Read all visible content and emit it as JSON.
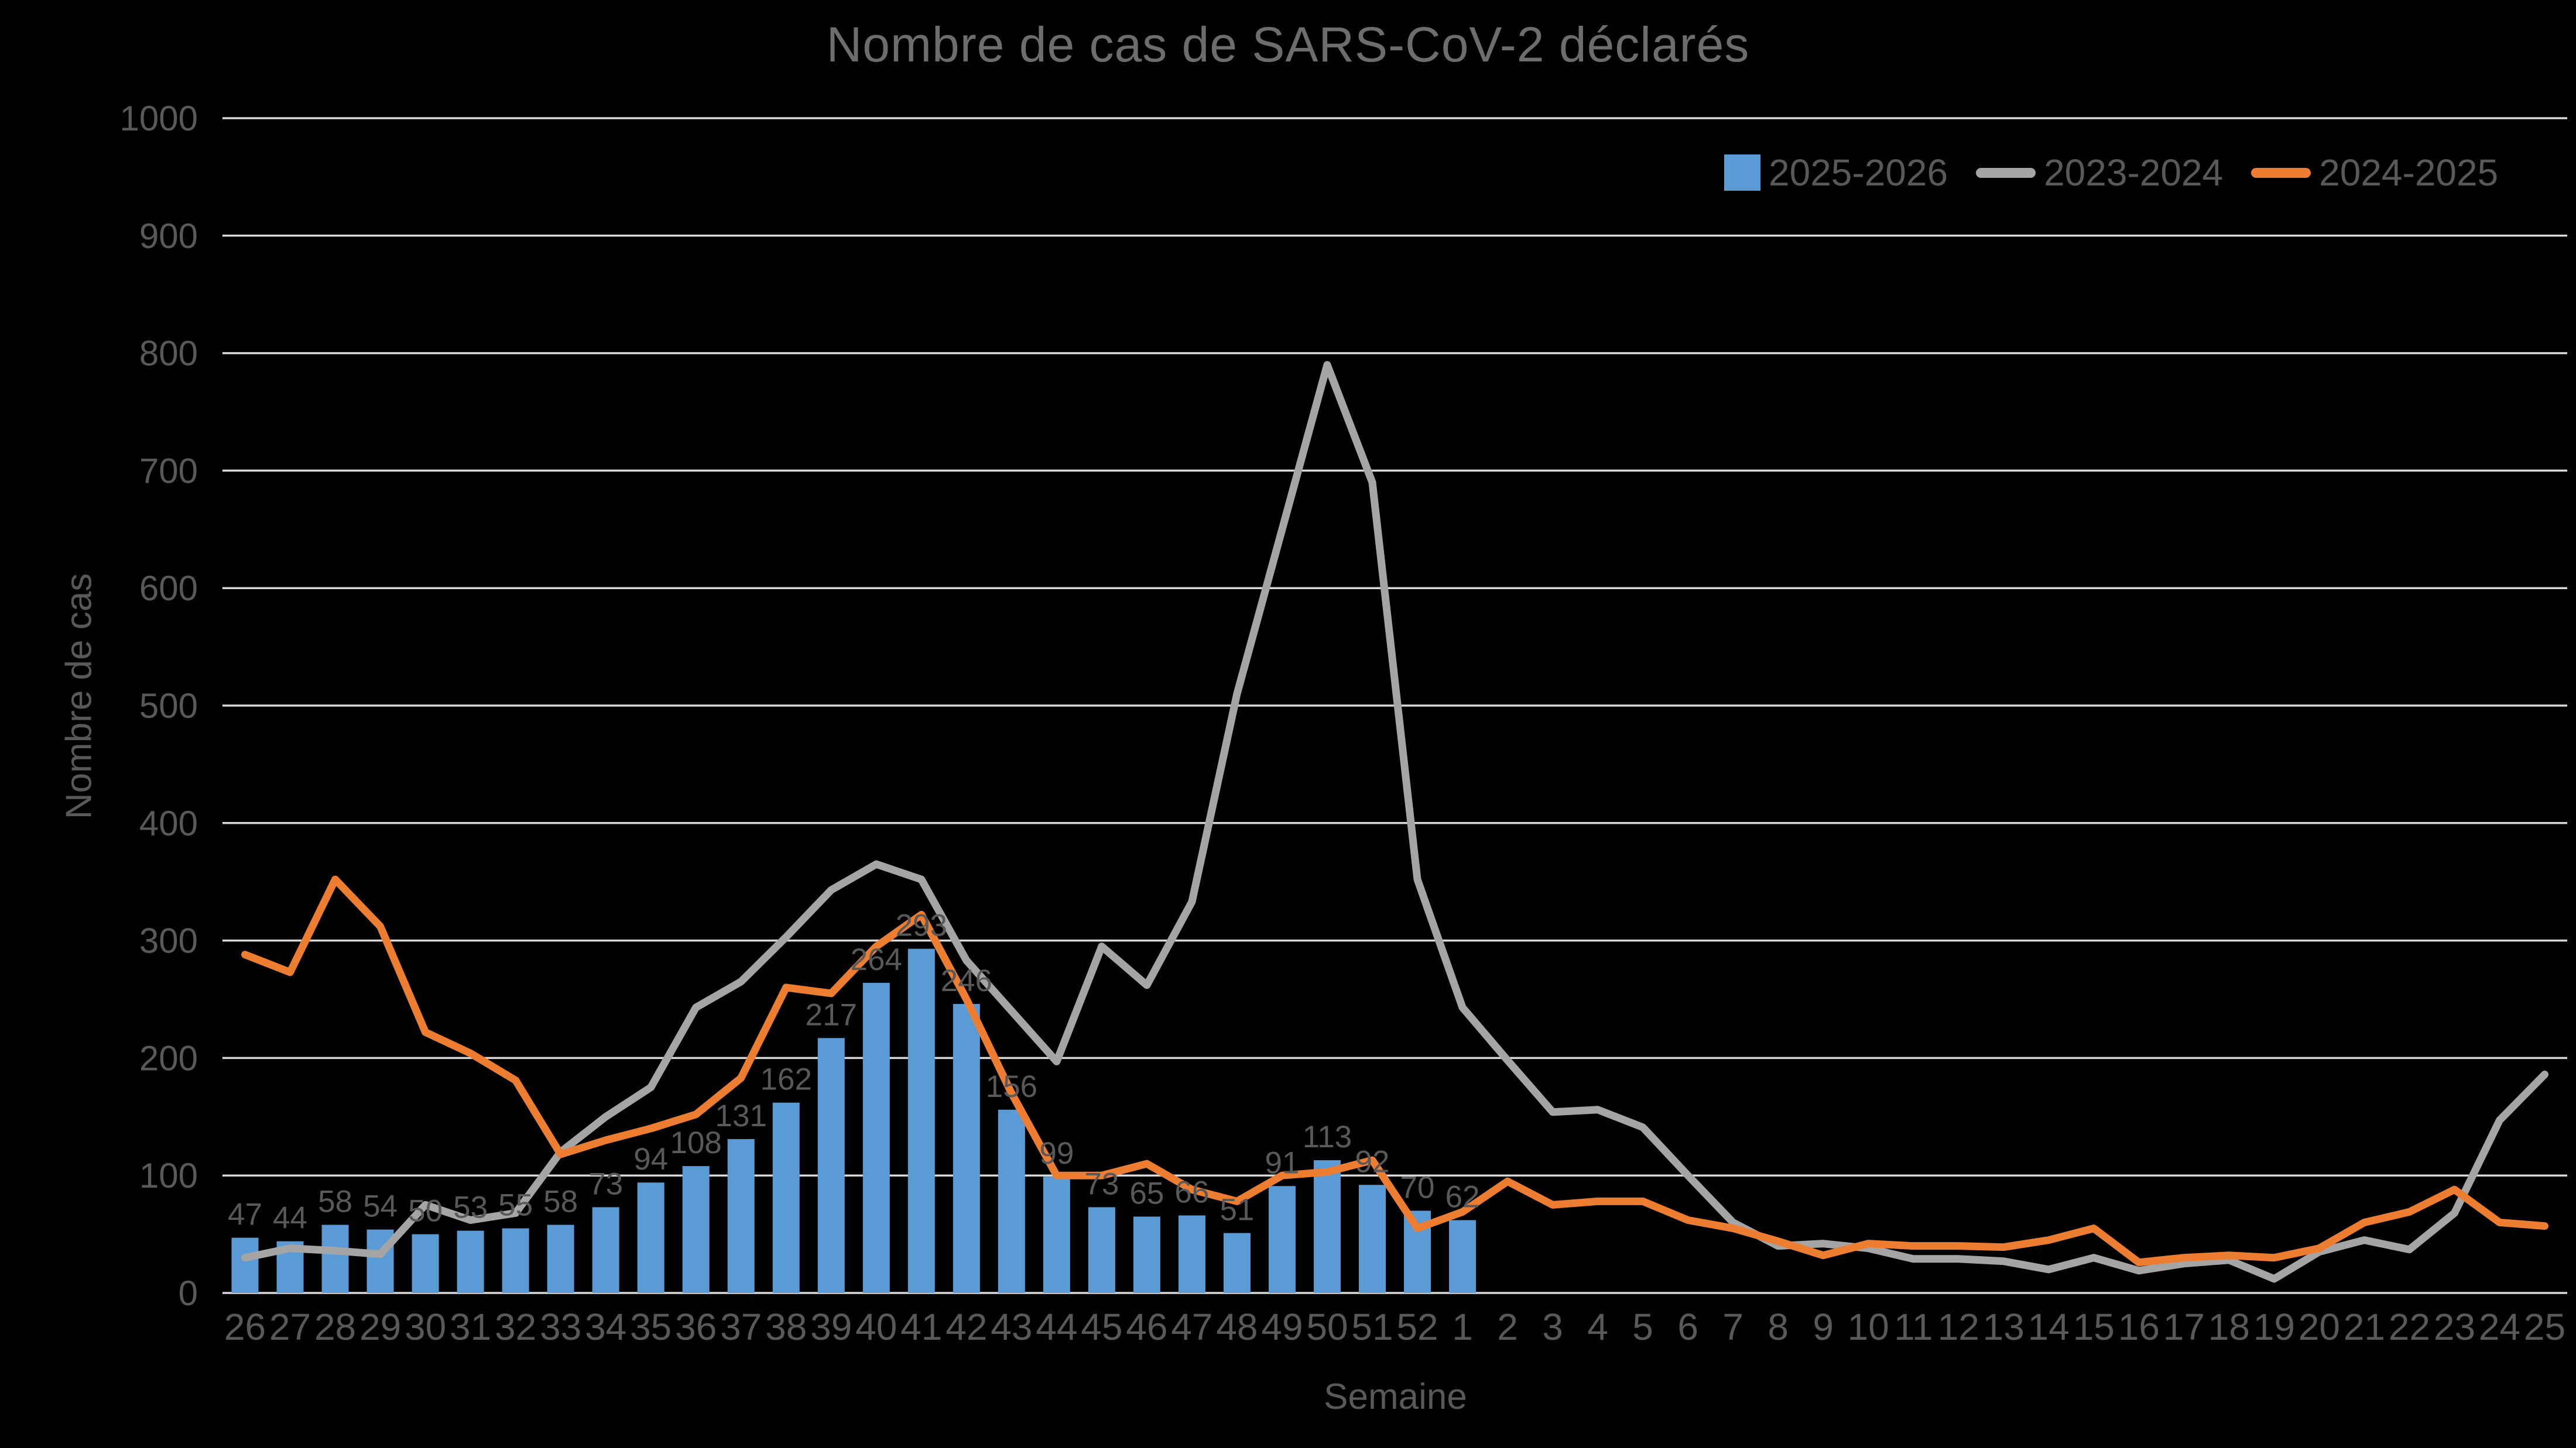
{
  "title": "Nombre de cas de SARS-CoV-2 déclarés",
  "colors": {
    "background": "#000000",
    "bar_blue": "#5B9BD5",
    "line_gray": "#A5A5A5",
    "line_orange": "#ED7D31",
    "text_gray": "#595959",
    "title_gray": "#6d6d6d",
    "gridline": "#D9D9D9"
  },
  "chart_data": {
    "type": "bar",
    "subtype": "combo-bar-lines",
    "title": "Nombre de cas de SARS-CoV-2 déclarés",
    "xlabel": "Semaine",
    "ylabel": "Nombre de cas",
    "ylim": [
      0,
      1000
    ],
    "ytick_step": 100,
    "grid": true,
    "legend_position": "top-right",
    "categories": [
      "26",
      "27",
      "28",
      "29",
      "30",
      "31",
      "32",
      "33",
      "34",
      "35",
      "36",
      "37",
      "38",
      "39",
      "40",
      "41",
      "42",
      "43",
      "44",
      "45",
      "46",
      "47",
      "48",
      "49",
      "50",
      "51",
      "52",
      "1",
      "2",
      "3",
      "4",
      "5",
      "6",
      "7",
      "8",
      "9",
      "10",
      "11",
      "12",
      "13",
      "14",
      "15",
      "16",
      "17",
      "18",
      "19",
      "20",
      "21",
      "22",
      "23",
      "24",
      "25"
    ],
    "series": [
      {
        "name": "2025-2026",
        "type": "bar",
        "color": "#5B9BD5",
        "data_labels": true,
        "values": [
          47,
          44,
          58,
          54,
          50,
          53,
          55,
          58,
          73,
          94,
          108,
          131,
          162,
          217,
          264,
          293,
          246,
          156,
          99,
          73,
          65,
          66,
          51,
          91,
          113,
          92,
          70,
          62,
          null,
          null,
          null,
          null,
          null,
          null,
          null,
          null,
          null,
          null,
          null,
          null,
          null,
          null,
          null,
          null,
          null,
          null,
          null,
          null,
          null,
          null,
          null,
          null
        ]
      },
      {
        "name": "2023-2024",
        "type": "line",
        "color": "#A5A5A5",
        "data_labels": false,
        "values": [
          30,
          38,
          36,
          33,
          75,
          62,
          68,
          120,
          150,
          175,
          243,
          265,
          303,
          343,
          365,
          352,
          283,
          240,
          197,
          295,
          262,
          333,
          510,
          650,
          790,
          690,
          352,
          243,
          198,
          154,
          156,
          141,
          100,
          60,
          40,
          42,
          38,
          29,
          29,
          27,
          20,
          30,
          19,
          25,
          28,
          12,
          35,
          45,
          37,
          68,
          147,
          186
        ]
      },
      {
        "name": "2024-2025",
        "type": "line",
        "color": "#ED7D31",
        "data_labels": false,
        "values": [
          288,
          273,
          352,
          312,
          222,
          204,
          181,
          118,
          130,
          140,
          152,
          183,
          260,
          255,
          295,
          322,
          250,
          170,
          100,
          100,
          110,
          88,
          78,
          100,
          103,
          113,
          55,
          69,
          95,
          75,
          78,
          78,
          62,
          55,
          44,
          32,
          42,
          40,
          40,
          39,
          45,
          55,
          26,
          30,
          32,
          30,
          38,
          60,
          69,
          88,
          60,
          57
        ]
      }
    ]
  }
}
